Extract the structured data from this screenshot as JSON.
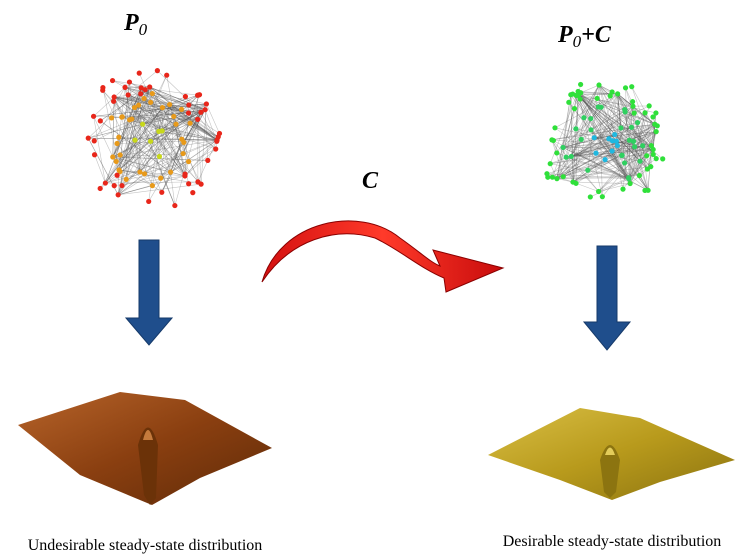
{
  "left": {
    "label": {
      "main": "P",
      "sub": "0"
    },
    "caption": "Undesirable steady-state distribution"
  },
  "right": {
    "label": {
      "main": "P",
      "sub": "0",
      "suffix": "+C"
    },
    "caption": "Desirable steady-state distribution"
  },
  "transform": {
    "label": "C"
  }
}
